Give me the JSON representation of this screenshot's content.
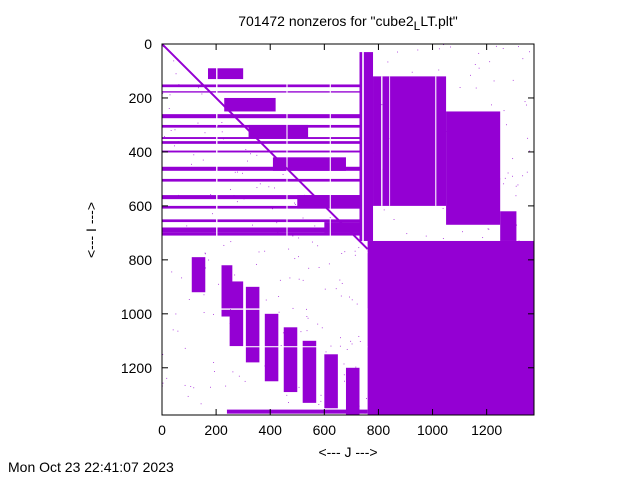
{
  "chart_data": {
    "type": "heatmap",
    "subtype": "sparsity-pattern",
    "title_prefix": "701472 nonzeros for \"cube2",
    "title_subscript": "L",
    "title_suffix": "LT.plt\"",
    "xlabel": "<--- J --->",
    "ylabel": "<--- I --->",
    "xlim": [
      0,
      1375
    ],
    "ylim": [
      1375,
      0
    ],
    "x_ticks": [
      0,
      200,
      400,
      600,
      800,
      1000,
      1200
    ],
    "y_ticks": [
      0,
      200,
      400,
      600,
      800,
      1000,
      1200
    ],
    "nonzeros": 701472,
    "color": "#9400d3",
    "blocks": [
      {
        "i0": 730,
        "i1": 1375,
        "j0": 760,
        "j1": 1375
      },
      {
        "i0": 30,
        "i1": 730,
        "j0": 730,
        "j1": 780
      },
      {
        "i0": 120,
        "i1": 600,
        "j0": 780,
        "j1": 1050
      },
      {
        "i0": 250,
        "i1": 670,
        "j0": 1050,
        "j1": 1250
      },
      {
        "i0": 620,
        "i1": 730,
        "j0": 1250,
        "j1": 1310
      },
      {
        "i0": 130,
        "i1": 730,
        "j0": 0,
        "j1": 760
      },
      {
        "i0": 730,
        "i1": 1375,
        "j0": 0,
        "j1": 760
      },
      {
        "i0": 1355,
        "i1": 1375,
        "j0": 250,
        "j1": 760
      }
    ],
    "diagonal_band": {
      "from": 0,
      "to": 760
    }
  },
  "footer": {
    "timestamp": "Mon Oct 23 22:41:07 2023"
  }
}
